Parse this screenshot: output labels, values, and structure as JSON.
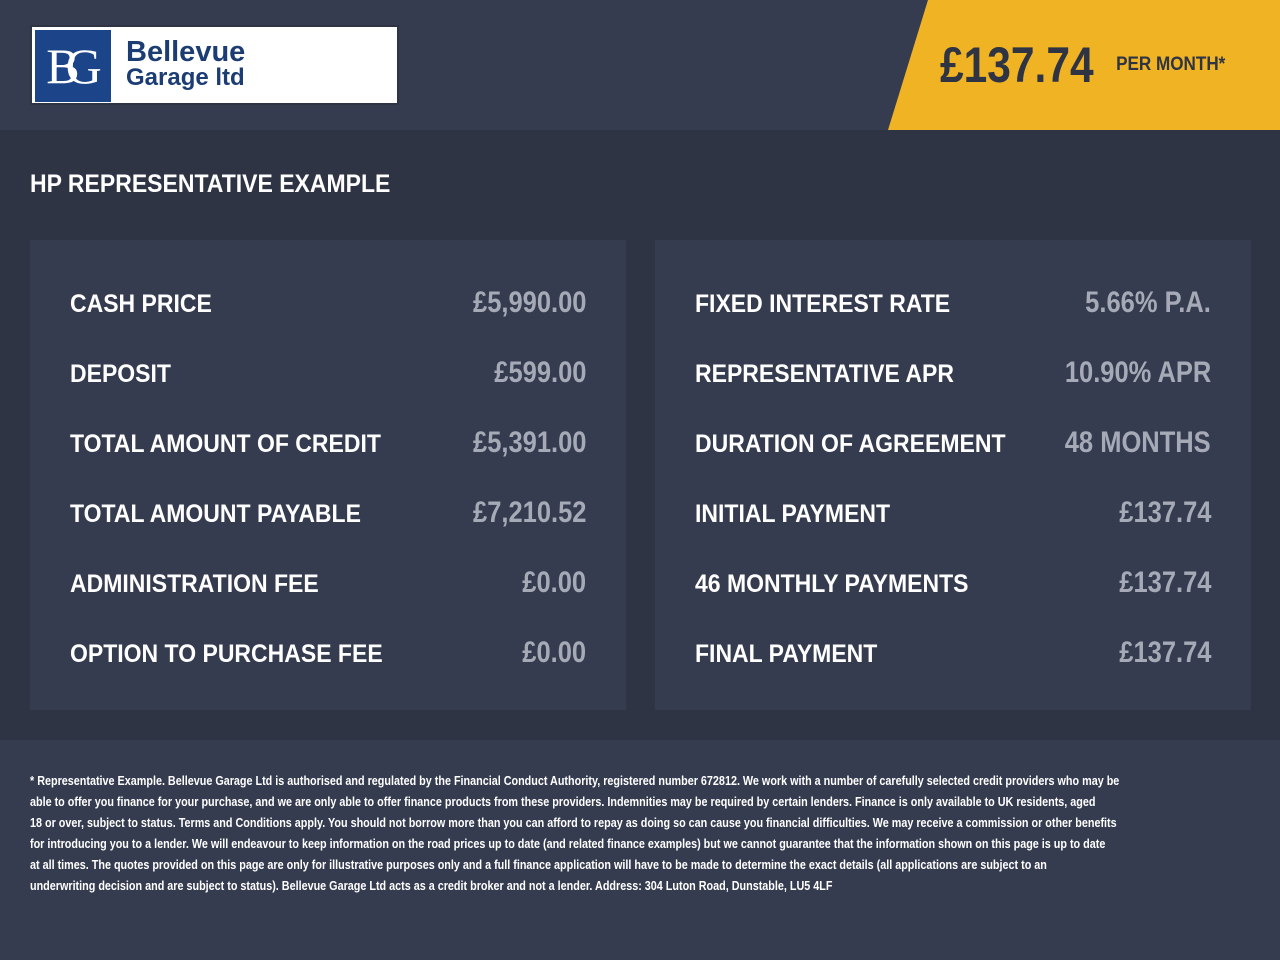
{
  "logo": {
    "mark": "BG",
    "line1": "Bellevue",
    "line2": "Garage ltd"
  },
  "banner": {
    "amount": "£137.74",
    "per_month": "PER MONTH*",
    "color": "#f0b323"
  },
  "title": "HP REPRESENTATIVE EXAMPLE",
  "left": [
    {
      "label": "CASH PRICE",
      "value": "£5,990.00"
    },
    {
      "label": "DEPOSIT",
      "value": "£599.00"
    },
    {
      "label": "TOTAL AMOUNT OF CREDIT",
      "value": "£5,391.00"
    },
    {
      "label": "TOTAL AMOUNT PAYABLE",
      "value": "£7,210.52"
    },
    {
      "label": "ADMINISTRATION FEE",
      "value": "£0.00"
    },
    {
      "label": "OPTION TO PURCHASE FEE",
      "value": "£0.00"
    }
  ],
  "right": [
    {
      "label": "FIXED INTEREST RATE",
      "value": "5.66% P.A."
    },
    {
      "label": "REPRESENTATIVE APR",
      "value": "10.90% APR"
    },
    {
      "label": "DURATION OF AGREEMENT",
      "value": "48 MONTHS"
    },
    {
      "label": "INITIAL PAYMENT",
      "value": "£137.74"
    },
    {
      "label": "46 MONTHLY PAYMENTS",
      "value": "£137.74"
    },
    {
      "label": "FINAL PAYMENT",
      "value": "£137.74"
    }
  ],
  "disclaimer": [
    "* Representative Example. Bellevue Garage Ltd is authorised and regulated by the Financial Conduct Authority, registered number 672812. We work with a number of carefully selected credit providers who may be",
    "able to offer you finance for your purchase, and we are only able to offer finance products from these providers. Indemnities may be required by certain lenders. Finance is only available to UK residents, aged",
    "18 or over, subject to status. Terms and Conditions apply. You should not borrow more than you can afford to repay as doing so can cause you financial difficulties. We may receive a commission or other benefits",
    "for introducing you to a lender. We will endeavour to keep information on the road prices up to date (and related finance examples) but we cannot guarantee that the information shown on this page is up to date",
    "at all times. The quotes provided on this page are only for illustrative purposes only and a full finance application will have to be made to determine the exact details (all applications are subject to an",
    "underwriting decision and are subject to status). Bellevue Garage Ltd acts as a credit broker and not a lender. Address: 304 Luton Road, Dunstable, LU5 4LF"
  ]
}
